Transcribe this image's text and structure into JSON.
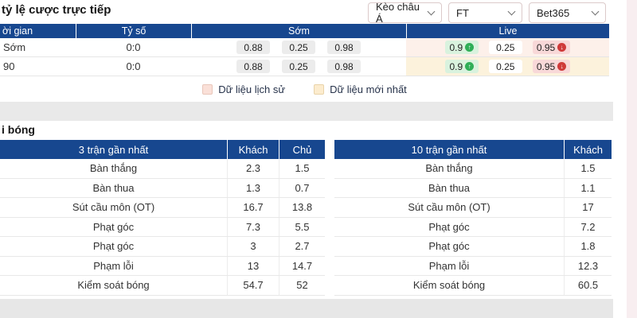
{
  "header": {
    "title": "tỷ lệ cược trực tiếp",
    "dropdowns": [
      {
        "value": "Kèo châu Á"
      },
      {
        "value": "FT"
      },
      {
        "value": "Bet365"
      }
    ]
  },
  "odds_table": {
    "columns": [
      "ời gian",
      "Tỷ số",
      "Sớm",
      "Live"
    ],
    "rows": [
      {
        "time": "Sớm",
        "score": "0:0",
        "early": [
          "0.88",
          "0.25",
          "0.98"
        ],
        "live": [
          {
            "value": "0.9",
            "dir": "up"
          },
          {
            "value": "0.25",
            "dir": "none"
          },
          {
            "value": "0.95",
            "dir": "down"
          }
        ],
        "highlight": "history"
      },
      {
        "time": "90",
        "score": "0:0",
        "early": [
          "0.88",
          "0.25",
          "0.98"
        ],
        "live": [
          {
            "value": "0.9",
            "dir": "up"
          },
          {
            "value": "0.25",
            "dir": "none"
          },
          {
            "value": "0.95",
            "dir": "down"
          }
        ],
        "highlight": "latest"
      }
    ]
  },
  "legend": {
    "items": [
      {
        "label": "Dữ liệu lịch sử",
        "swatch": "history"
      },
      {
        "label": "Dữ liệu mới nhất",
        "swatch": "latest"
      }
    ]
  },
  "stats": {
    "section_title": "i bóng",
    "left": {
      "header": "3 trận gần nhất",
      "col_away": "Khách",
      "col_home": "Chủ",
      "rows": [
        {
          "label": "Bàn thắng",
          "away": "2.3",
          "home": "1.5"
        },
        {
          "label": "Bàn thua",
          "away": "1.3",
          "home": "0.7"
        },
        {
          "label": "Sút cầu môn (OT)",
          "away": "16.7",
          "home": "13.8"
        },
        {
          "label": "Phạt góc",
          "away": "7.3",
          "home": "5.5"
        },
        {
          "label": "Phạt góc",
          "away": "3",
          "home": "2.7"
        },
        {
          "label": "Phạm lỗi",
          "away": "13",
          "home": "14.7"
        },
        {
          "label": "Kiểm soát bóng",
          "away": "54.7",
          "home": "52"
        }
      ]
    },
    "right": {
      "header": "10 trận gần nhất",
      "col_away": "Khách",
      "rows": [
        {
          "label": "Bàn thắng",
          "away": "1.5"
        },
        {
          "label": "Bàn thua",
          "away": "1.1"
        },
        {
          "label": "Sút cầu môn (OT)",
          "away": "17"
        },
        {
          "label": "Phạt góc",
          "away": "7.2"
        },
        {
          "label": "Phạt góc",
          "away": "1.8"
        },
        {
          "label": "Phạm lỗi",
          "away": "12.3"
        },
        {
          "label": "Kiểm soát bóng",
          "away": "60.5"
        }
      ]
    }
  },
  "colors": {
    "header_navy": "#17478f",
    "live_history_bg": "#fdf0ea",
    "live_latest_bg": "#fcf2dc",
    "odds_badge_bg": "#ececec",
    "up_badge_bg": "#d9f2de",
    "down_badge_bg": "#f8d8d8",
    "up_icon": "#2fae57",
    "down_icon": "#cf3a3a",
    "legend_history": "#fae0d8",
    "legend_latest": "#fcecce"
  }
}
